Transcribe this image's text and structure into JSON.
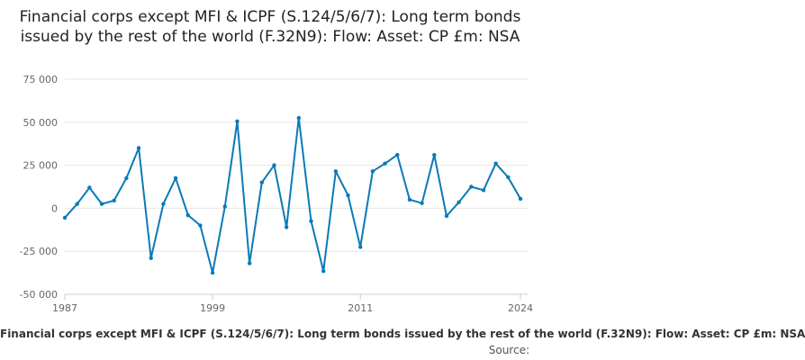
{
  "chart_data": {
    "type": "line",
    "title": "Financial corps except MFI & ICPF (S.124/5/6/7): Long term bonds issued by the rest of the world (F.32N9): Flow: Asset: CP £m: NSA",
    "xlabel": "",
    "ylabel": "",
    "ylim": [
      -50000,
      75000
    ],
    "xlim": [
      1987,
      2024
    ],
    "y_ticks": [
      75000,
      50000,
      25000,
      0,
      -25000,
      -50000
    ],
    "y_tick_labels": [
      "75 000",
      "50 000",
      "25 000",
      "0",
      "-25 000",
      "-50 000"
    ],
    "x_ticks": [
      1987,
      1999,
      2011,
      2024
    ],
    "x_tick_labels": [
      "1987",
      "1999",
      "2011",
      "2024"
    ],
    "grid": true,
    "legend_position": "bottom",
    "series": [
      {
        "name": "Financial corps except MFI & ICPF (S.124/5/6/7): Long term bonds issued by the rest of the world (F.32N9): Flow: Asset: CP £m: NSA",
        "color": "#0a7ab8",
        "x": [
          1987,
          1988,
          1989,
          1990,
          1991,
          1992,
          1993,
          1994,
          1995,
          1996,
          1997,
          1998,
          1999,
          2000,
          2001,
          2002,
          2003,
          2004,
          2005,
          2006,
          2007,
          2008,
          2009,
          2010,
          2011,
          2012,
          2013,
          2014,
          2015,
          2016,
          2017,
          2018,
          2019,
          2020,
          2021,
          2022,
          2023,
          2024
        ],
        "values": [
          -5500,
          2500,
          12000,
          2500,
          4500,
          17500,
          35000,
          -29000,
          2500,
          17500,
          -4000,
          -10000,
          -37500,
          1000,
          50500,
          -32000,
          15000,
          25000,
          -11000,
          52500,
          -7500,
          -36500,
          21500,
          7500,
          -22500,
          21500,
          26000,
          31000,
          5000,
          3000,
          31000,
          -4500,
          3500,
          12500,
          10500,
          26000,
          18000,
          5500
        ]
      }
    ],
    "legend_text": "Financial corps except MFI & ICPF (S.124/5/6/7): Long term bonds issued by the rest of the world (F.32N9): Flow: Asset: CP £m: NSA",
    "source_label": "Source:"
  }
}
